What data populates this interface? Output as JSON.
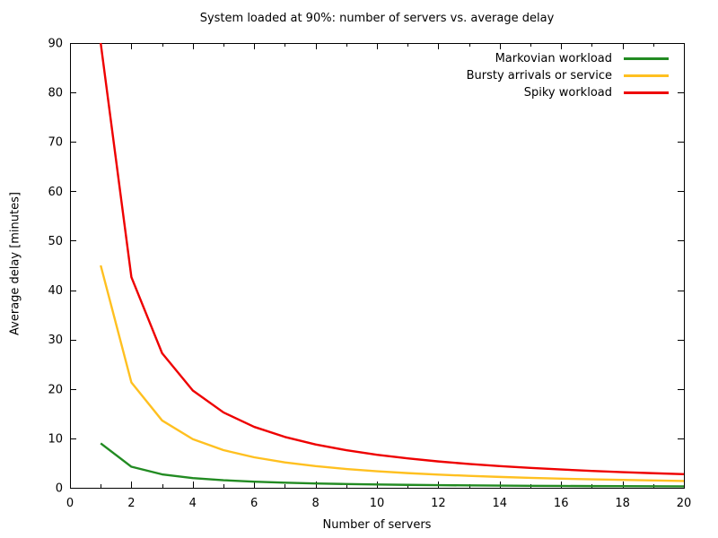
{
  "chart_data": {
    "type": "line",
    "title": "System loaded at 90%: number of servers vs. average delay",
    "xlabel": "Number of servers",
    "ylabel": "Average delay [minutes]",
    "xlim": [
      0,
      20
    ],
    "ylim": [
      0,
      90
    ],
    "xticks_major": [
      0,
      2,
      4,
      6,
      8,
      10,
      12,
      14,
      16,
      18,
      20
    ],
    "xticks_minor": [
      1,
      3,
      5,
      7,
      9,
      11,
      13,
      15,
      17,
      19
    ],
    "yticks_major": [
      0,
      10,
      20,
      30,
      40,
      50,
      60,
      70,
      80,
      90
    ],
    "grid": false,
    "legend_position": "top-right-inside",
    "background_color": "#ffffff",
    "axis_color": "#000000",
    "x": [
      1,
      2,
      3,
      4,
      5,
      6,
      7,
      8,
      9,
      10,
      11,
      12,
      13,
      14,
      15,
      16,
      17,
      18,
      19,
      20
    ],
    "series": [
      {
        "name": "Markovian workload",
        "color": "#228b22",
        "values": [
          9.0,
          4.26,
          2.72,
          1.97,
          1.53,
          1.23,
          1.03,
          0.88,
          0.76,
          0.67,
          0.59,
          0.53,
          0.48,
          0.44,
          0.4,
          0.37,
          0.34,
          0.32,
          0.3,
          0.28
        ]
      },
      {
        "name": "Bursty arrivals or service",
        "color": "#ffc020",
        "values": [
          45.0,
          21.32,
          13.62,
          9.85,
          7.62,
          6.17,
          5.14,
          4.39,
          3.8,
          3.34,
          2.97,
          2.67,
          2.41,
          2.2,
          2.01,
          1.85,
          1.71,
          1.59,
          1.48,
          1.38
        ]
      },
      {
        "name": "Spiky workload",
        "color": "#ee0000",
        "values": [
          90.0,
          42.63,
          27.24,
          19.69,
          15.25,
          12.33,
          10.29,
          8.77,
          7.61,
          6.69,
          5.95,
          5.33,
          4.82,
          4.39,
          4.02,
          3.7,
          3.42,
          3.17,
          2.95,
          2.76
        ]
      }
    ]
  }
}
